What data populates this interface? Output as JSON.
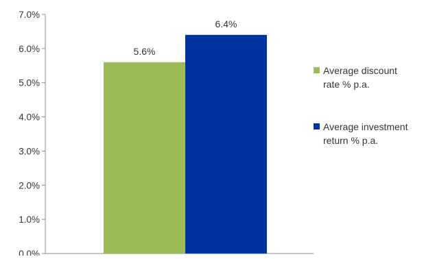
{
  "chart_data": {
    "type": "bar",
    "title": "",
    "xlabel": "",
    "ylabel": "",
    "ylim": [
      0,
      7
    ],
    "y_ticks": [
      {
        "value": 0,
        "label": "0.0%"
      },
      {
        "value": 1,
        "label": "1.0%"
      },
      {
        "value": 2,
        "label": "2.0%"
      },
      {
        "value": 3,
        "label": "3.0%"
      },
      {
        "value": 4,
        "label": "4.0%"
      },
      {
        "value": 5,
        "label": "5.0%"
      },
      {
        "value": 6,
        "label": "6.0%"
      },
      {
        "value": 7,
        "label": "7.0%"
      }
    ],
    "grid": false,
    "legend_position": "right",
    "series": [
      {
        "name": "Average discount rate % p.a.",
        "name_lines": [
          "Average discount",
          "rate % p.a."
        ],
        "value": 5.6,
        "label": "5.6%",
        "color": "#9BBB59"
      },
      {
        "name": "Average investment return % p.a.",
        "name_lines": [
          "Average investment",
          "return % p.a."
        ],
        "value": 6.4,
        "label": "6.4%",
        "color": "#0033A0"
      }
    ]
  }
}
